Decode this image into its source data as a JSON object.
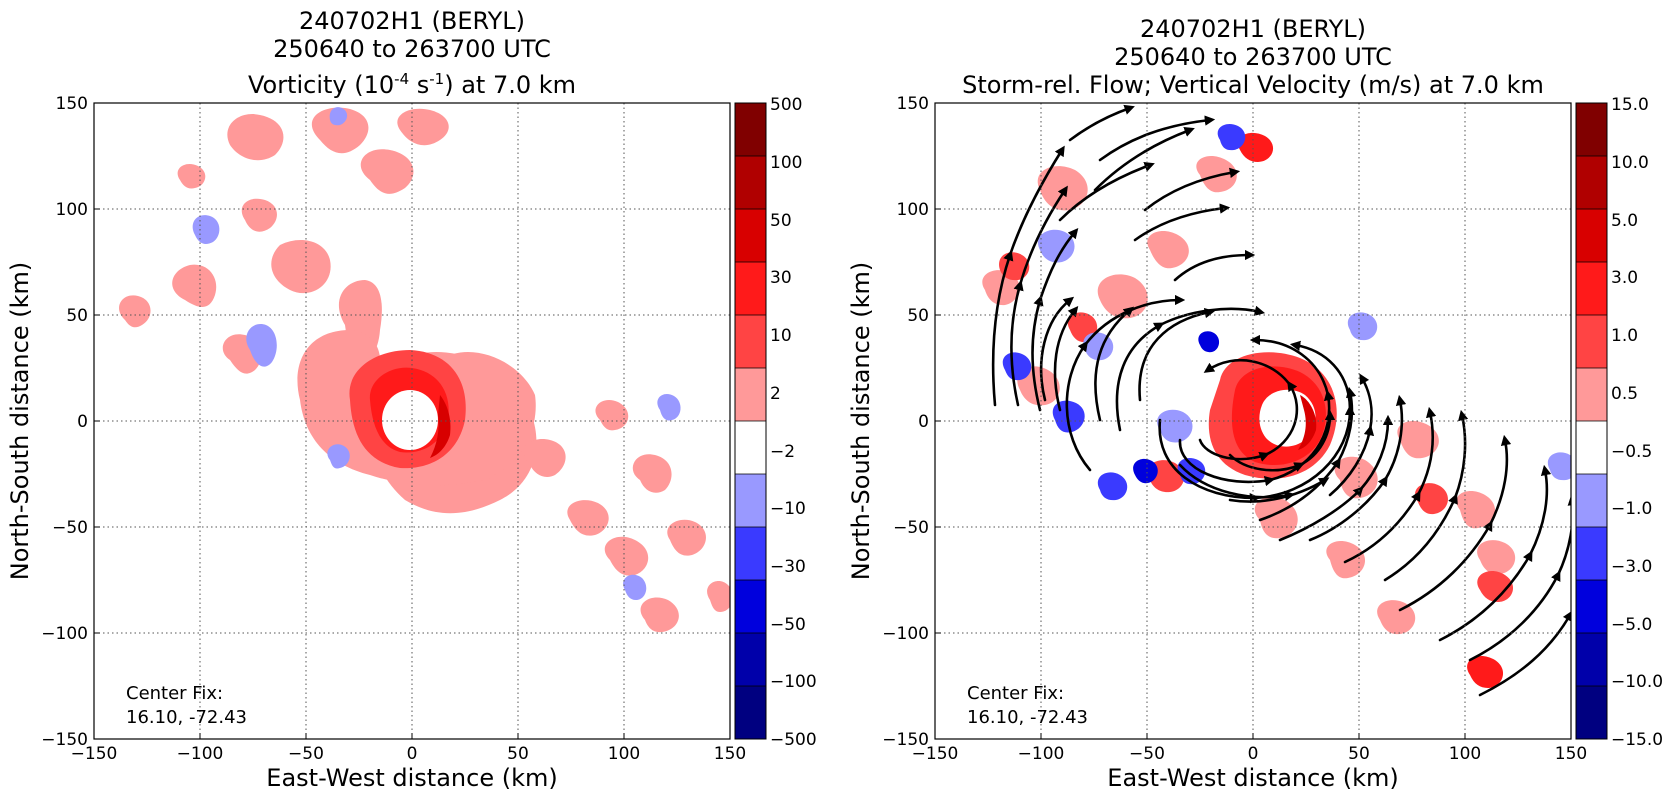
{
  "chart_data": [
    {
      "type": "heatmap",
      "title_lines": [
        "240702H1 (BERYL)",
        "250640 to 263700 UTC"
      ],
      "title_field": {
        "prefix": "Vorticity (10",
        "exp1": "-4",
        "mid": " s",
        "exp2": "-1",
        "suffix": ") at 7.0 km"
      },
      "xlabel": "East-West distance (km)",
      "ylabel": "North-South distance (km)",
      "xlim": [
        -150,
        150
      ],
      "ylim": [
        -150,
        150
      ],
      "xticks": [
        "−150",
        "−100",
        "−50",
        "0",
        "50",
        "100",
        "150"
      ],
      "yticks": [
        "−150",
        "−100",
        "−50",
        "0",
        "50",
        "100",
        "150"
      ],
      "grid": true,
      "colorbar": {
        "labels": [
          "500",
          "100",
          "50",
          "30",
          "10",
          "2",
          "−2",
          "−10",
          "−30",
          "−50",
          "−100",
          "−500"
        ],
        "colors_top_to_bottom": [
          "#800000",
          "#b00000",
          "#d80000",
          "#ff1a1a",
          "#ff4444",
          "#ff9999",
          "#ffffff",
          "#9999ff",
          "#3a3aff",
          "#0000dd",
          "#0000aa",
          "#000080"
        ]
      },
      "annotation": {
        "line1": "Center Fix:",
        "line2": "16.10, -72.43"
      }
    },
    {
      "type": "heatmap",
      "title_lines": [
        "240702H1 (BERYL)",
        "250640 to 263700 UTC"
      ],
      "title_field": {
        "text": "Storm-rel. Flow; Vertical Velocity (m/s) at 7.0 km"
      },
      "xlabel": "East-West distance (km)",
      "ylabel": "North-South distance (km)",
      "xlim": [
        -150,
        150
      ],
      "ylim": [
        -150,
        150
      ],
      "xticks": [
        "−150",
        "−100",
        "−50",
        "0",
        "50",
        "100",
        "150"
      ],
      "yticks": [
        "−150",
        "−100",
        "−50",
        "0",
        "50",
        "100",
        "150"
      ],
      "grid": true,
      "colorbar": {
        "labels": [
          "15.0",
          "10.0",
          "5.0",
          "3.0",
          "1.0",
          "0.5",
          "−0.5",
          "−1.0",
          "−3.0",
          "−5.0",
          "−10.0",
          "−15.0"
        ],
        "colors_top_to_bottom": [
          "#800000",
          "#b00000",
          "#d80000",
          "#ff1a1a",
          "#ff4444",
          "#ff9999",
          "#ffffff",
          "#9999ff",
          "#3a3aff",
          "#0000dd",
          "#0000aa",
          "#000080"
        ]
      },
      "annotation": {
        "line1": "Center Fix:",
        "line2": "16.10, -72.43"
      }
    }
  ]
}
